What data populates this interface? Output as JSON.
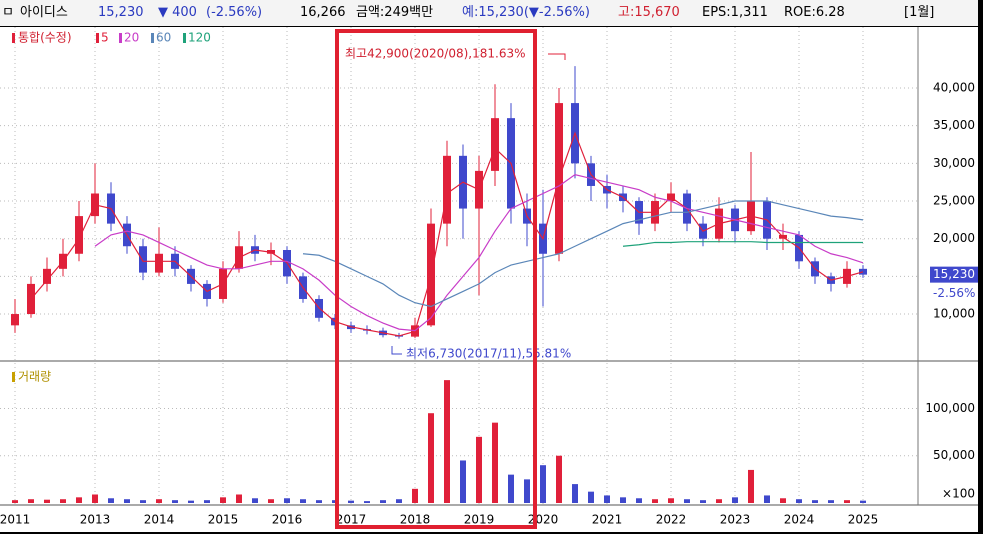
{
  "header": {
    "name": "아이디스",
    "price": "15,230",
    "change": "▼ 400",
    "change_pct": "(-2.56%)",
    "volume": "16,266",
    "amount": "금액:249백만",
    "expected": "예:15,230(▼-2.56%)",
    "high": "고:15,670",
    "eps": "EPS:1,311",
    "roe": "ROE:6.28",
    "period": "[1월]"
  },
  "chart_data": [
    {
      "type": "candlestick",
      "legend_title": "통합(수정)",
      "up_color": "#e0203a",
      "down_color": "#3f48cc",
      "grid": true,
      "categories": [
        "2011",
        null,
        null,
        null,
        null,
        "2013",
        null,
        null,
        null,
        "2014",
        null,
        null,
        null,
        "2015",
        null,
        null,
        null,
        "2016",
        null,
        null,
        null,
        "2017",
        null,
        null,
        null,
        "2018",
        null,
        null,
        null,
        "2019",
        null,
        null,
        null,
        "2020",
        null,
        null,
        null,
        "2021",
        null,
        null,
        null,
        "2022",
        null,
        null,
        null,
        "2023",
        null,
        null,
        null,
        "2024",
        null,
        null,
        null,
        "2025"
      ],
      "open": [
        8500,
        10000,
        14000,
        16000,
        18000,
        23000,
        26000,
        22000,
        19000,
        15500,
        18000,
        16000,
        14000,
        12000,
        16000,
        19000,
        18000,
        18500,
        15000,
        12000,
        9500,
        8500,
        8000,
        7800,
        7200,
        7000,
        8500,
        22000,
        31000,
        24000,
        29000,
        36000,
        24000,
        22000,
        18000,
        38000,
        30000,
        27000,
        26000,
        25000,
        22000,
        25000,
        26000,
        22000,
        20000,
        24000,
        21000,
        25000,
        20000,
        20500,
        17000,
        15000,
        14000,
        16000
      ],
      "high": [
        12000,
        15000,
        17500,
        20000,
        25000,
        30000,
        27500,
        23000,
        20000,
        21500,
        19000,
        16500,
        14500,
        17000,
        21000,
        20500,
        19500,
        19000,
        15500,
        12500,
        10000,
        9000,
        8500,
        8200,
        7500,
        9500,
        24000,
        33000,
        32500,
        31000,
        40500,
        38000,
        26000,
        26500,
        40000,
        42900,
        31000,
        28500,
        27000,
        25500,
        26000,
        27500,
        26500,
        23000,
        25500,
        24500,
        31500,
        25500,
        22000,
        21000,
        17500,
        15500,
        17000,
        16500
      ],
      "low": [
        7500,
        9500,
        13000,
        15000,
        17000,
        22000,
        21000,
        18000,
        14500,
        15000,
        15000,
        13000,
        11000,
        11500,
        15500,
        17000,
        16500,
        14000,
        11500,
        9000,
        8000,
        7500,
        7300,
        6900,
        6730,
        6800,
        8300,
        19000,
        20000,
        12500,
        27000,
        22000,
        19000,
        11000,
        17000,
        28000,
        25000,
        24000,
        23500,
        20500,
        21000,
        23500,
        21000,
        19000,
        19500,
        19500,
        20500,
        18500,
        18500,
        16000,
        14000,
        13000,
        13500,
        14800
      ],
      "close": [
        10000,
        14000,
        16000,
        18000,
        23000,
        26000,
        22000,
        19000,
        15500,
        18000,
        16000,
        14000,
        12000,
        16000,
        19000,
        18000,
        18500,
        15000,
        12000,
        9500,
        8500,
        8000,
        7800,
        7200,
        7000,
        8500,
        22000,
        31000,
        24000,
        29000,
        36000,
        24000,
        22000,
        18000,
        38000,
        30000,
        27000,
        26000,
        25000,
        22000,
        25000,
        26000,
        22000,
        20000,
        24000,
        21000,
        25000,
        20000,
        20500,
        17000,
        15000,
        14000,
        16000,
        15230
      ],
      "series": [
        {
          "name": "5",
          "color": "#e0203a",
          "values": [
            null,
            12000,
            14500,
            17000,
            20000,
            24500,
            24000,
            20500,
            17000,
            17000,
            17000,
            15000,
            13000,
            14000,
            17500,
            18500,
            18200,
            16800,
            13500,
            10800,
            9000,
            8300,
            7900,
            7500,
            7100,
            7700,
            15000,
            26000,
            27500,
            26500,
            32000,
            30000,
            23000,
            20000,
            28000,
            34000,
            28500,
            26500,
            25500,
            23500,
            23500,
            25500,
            24000,
            21000,
            22000,
            22500,
            23000,
            22500,
            20200,
            18800,
            16000,
            14500,
            15000,
            15600
          ]
        },
        {
          "name": "20",
          "color": "#c83cc8",
          "values": [
            null,
            null,
            null,
            null,
            null,
            19000,
            20500,
            21000,
            20500,
            19500,
            18500,
            17500,
            16500,
            16000,
            16000,
            16500,
            17000,
            17000,
            16000,
            14500,
            12500,
            11000,
            9800,
            8800,
            8000,
            7800,
            9500,
            12500,
            15000,
            17500,
            21000,
            24000,
            25000,
            26000,
            27000,
            28500,
            28000,
            27500,
            27000,
            26500,
            25500,
            25000,
            24000,
            23500,
            23000,
            22500,
            22000,
            21500,
            21000,
            20500,
            19000,
            18000,
            17500,
            16800
          ]
        },
        {
          "name": "60",
          "color": "#5a86b8",
          "values": [
            null,
            null,
            null,
            null,
            null,
            null,
            null,
            null,
            null,
            null,
            null,
            null,
            null,
            null,
            null,
            null,
            null,
            null,
            18000,
            17800,
            17000,
            16000,
            15000,
            14000,
            12500,
            11500,
            11000,
            12000,
            13000,
            14000,
            15500,
            16500,
            17000,
            17500,
            18000,
            19000,
            20000,
            21000,
            22000,
            22500,
            23000,
            23500,
            23500,
            24000,
            24500,
            25000,
            25000,
            25000,
            24500,
            24000,
            23500,
            23000,
            22800,
            22500
          ]
        },
        {
          "name": "120",
          "color": "#1ea27a",
          "values": [
            null,
            null,
            null,
            null,
            null,
            null,
            null,
            null,
            null,
            null,
            null,
            null,
            null,
            null,
            null,
            null,
            null,
            null,
            null,
            null,
            null,
            null,
            null,
            null,
            null,
            null,
            null,
            null,
            null,
            null,
            null,
            null,
            null,
            null,
            null,
            null,
            null,
            null,
            19000,
            19200,
            19500,
            19500,
            19600,
            19600,
            19600,
            19600,
            19600,
            19500,
            19500,
            19500,
            19500,
            19500,
            19500,
            19500
          ]
        }
      ],
      "ylim": [
        3900,
        47700
      ],
      "yticks": [
        {
          "value": 10000,
          "label": "10,000"
        },
        {
          "value": 15000,
          "label": "15,000"
        },
        {
          "value": 20000,
          "label": "20,000"
        },
        {
          "value": 25000,
          "label": "25,000"
        },
        {
          "value": 30000,
          "label": "30,000"
        },
        {
          "value": 35000,
          "label": "35,000"
        },
        {
          "value": 40000,
          "label": "40,000"
        }
      ],
      "annotations": [
        "최고42,900(2020/08),181.63%",
        "최저6,730(2017/11),55.81%"
      ],
      "current_label": "15,230",
      "current_change": "-2.56%"
    },
    {
      "type": "bar",
      "title": "거래량",
      "unit_label": "×100",
      "grid": true,
      "values": [
        3000,
        4000,
        3500,
        4000,
        6000,
        9000,
        5000,
        4000,
        3000,
        4000,
        3000,
        2500,
        3000,
        6000,
        9000,
        5000,
        4000,
        5000,
        4000,
        3000,
        3000,
        2500,
        2000,
        3000,
        4000,
        15000,
        95000,
        130000,
        45000,
        70000,
        85000,
        30000,
        25000,
        40000,
        50000,
        20000,
        12000,
        8000,
        6000,
        5000,
        4000,
        5000,
        4000,
        3000,
        4000,
        6000,
        35000,
        8000,
        5000,
        4000,
        3000,
        3000,
        3000,
        2500
      ],
      "ylim": [
        0,
        146000
      ],
      "yticks": [
        {
          "value": 50000,
          "label": "50,000"
        },
        {
          "value": 100000,
          "label": "100,000"
        }
      ]
    }
  ]
}
